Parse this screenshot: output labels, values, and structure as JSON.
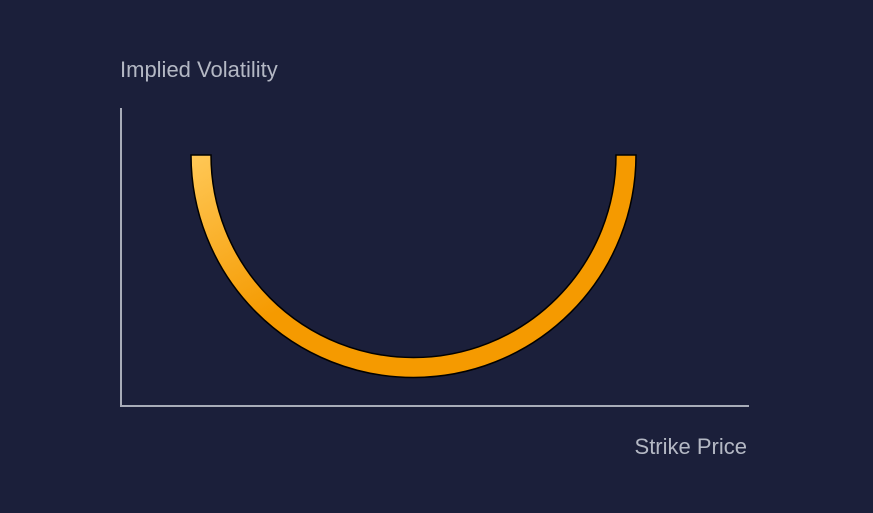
{
  "diagram": {
    "y_axis_label": "Implied Volatility",
    "x_axis_label": "Strike Price",
    "curve": {
      "shape": "volatility-smile",
      "color_light": "#ffc857",
      "color_dark": "#f59a00"
    },
    "axis_color": "#a8acb8",
    "background": "#1b1f3a"
  }
}
